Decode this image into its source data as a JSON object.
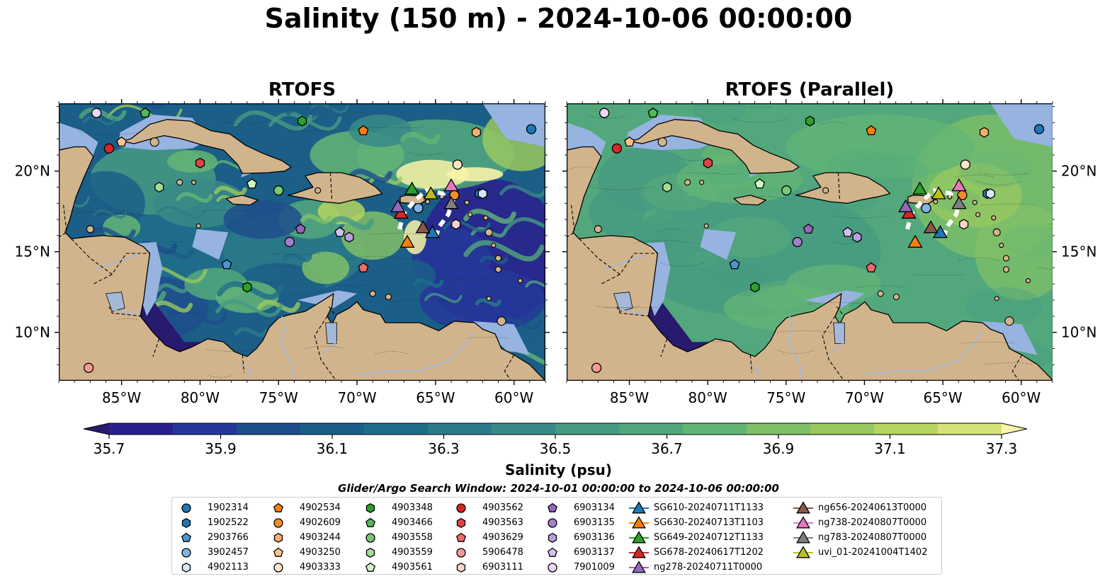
{
  "title": "Salinity (150 m) - 2024-10-06 00:00:00",
  "panels": [
    {
      "title": "RTOFS",
      "variant": "eddy"
    },
    {
      "title": "RTOFS (Parallel)",
      "variant": "smooth"
    }
  ],
  "map": {
    "lon_range": [
      -89.0,
      -58.0
    ],
    "lat_range": [
      7.0,
      24.2
    ],
    "lat_ticks": [
      "10°N",
      "15°N",
      "20°N"
    ],
    "lon_ticks": [
      "85°W",
      "80°W",
      "75°W",
      "70°W",
      "65°W",
      "60°W"
    ],
    "colors": {
      "land": "#d2b48c",
      "shelf": "#97b3e0",
      "coast": "#000000",
      "river": "#a4b8d8"
    }
  },
  "colorbar": {
    "label": "Salinity (psu)",
    "ticks": [
      "35.7",
      "35.9",
      "36.1",
      "36.3",
      "36.5",
      "36.7",
      "36.9",
      "37.1",
      "37.3"
    ],
    "vmin": 35.7,
    "vmax": 37.3,
    "colors": [
      "#281a6e",
      "#29208e",
      "#24389a",
      "#1e4d8c",
      "#1b5e87",
      "#1e6e8a",
      "#2c7a8a",
      "#388a87",
      "#459a82",
      "#52a87c",
      "#63b575",
      "#80c068",
      "#99c860",
      "#b5d560",
      "#d6e27a",
      "#f8f3a8"
    ]
  },
  "search_window": "Glider/Argo Search Window: 2024-10-01 00:00:00 to 2024-10-06 00:00:00",
  "legend": [
    {
      "label": "1902314",
      "marker": "circle",
      "color": "#1f77b4"
    },
    {
      "label": "1902522",
      "marker": "hexagon",
      "color": "#1f77b4"
    },
    {
      "label": "2903766",
      "marker": "pentagon",
      "color": "#4e95cc"
    },
    {
      "label": "3902457",
      "marker": "circle",
      "color": "#7fb4e6"
    },
    {
      "label": "4902113",
      "marker": "hexagon",
      "color": "#d4e8fb"
    },
    {
      "label": "4902534",
      "marker": "pentagon",
      "color": "#ff7f0e"
    },
    {
      "label": "4902609",
      "marker": "circle",
      "color": "#f28d2e"
    },
    {
      "label": "4903244",
      "marker": "hexagon",
      "color": "#fbae6b"
    },
    {
      "label": "4903250",
      "marker": "pentagon",
      "color": "#fcc38f"
    },
    {
      "label": "4903333",
      "marker": "circle",
      "color": "#ffe4c9"
    },
    {
      "label": "4903348",
      "marker": "hexagon",
      "color": "#2ca02c"
    },
    {
      "label": "4903466",
      "marker": "pentagon",
      "color": "#56b756"
    },
    {
      "label": "4903558",
      "marker": "circle",
      "color": "#77c877"
    },
    {
      "label": "4903559",
      "marker": "hexagon",
      "color": "#a2dc95"
    },
    {
      "label": "4903561",
      "marker": "pentagon",
      "color": "#d2f4c3"
    },
    {
      "label": "4903562",
      "marker": "circle",
      "color": "#d62728"
    },
    {
      "label": "4903563",
      "marker": "hexagon",
      "color": "#de4546"
    },
    {
      "label": "4903629",
      "marker": "pentagon",
      "color": "#ee6b68"
    },
    {
      "label": "5906478",
      "marker": "circle",
      "color": "#f59896"
    },
    {
      "label": "6903111",
      "marker": "hexagon",
      "color": "#fdd2cd"
    },
    {
      "label": "6903134",
      "marker": "pentagon",
      "color": "#9467bd"
    },
    {
      "label": "6903135",
      "marker": "circle",
      "color": "#a57fcb"
    },
    {
      "label": "6903136",
      "marker": "hexagon",
      "color": "#bd9be0"
    },
    {
      "label": "6903137",
      "marker": "pentagon",
      "color": "#d5bff0"
    },
    {
      "label": "7901009",
      "marker": "circle",
      "color": "#ecd6fa"
    },
    {
      "label": "SG610-20240711T1133",
      "marker": "triangle",
      "color": "#1f77b4"
    },
    {
      "label": "SG630-20240713T1103",
      "marker": "triangle",
      "color": "#ff7f0e"
    },
    {
      "label": "SG649-20240712T1133",
      "marker": "triangle",
      "color": "#2ca02c"
    },
    {
      "label": "SG678-20240617T1202",
      "marker": "triangle",
      "color": "#d62728"
    },
    {
      "label": "ng278-20240711T0000",
      "marker": "triangle",
      "color": "#9467bd"
    },
    {
      "label": "ng656-20240613T0000",
      "marker": "triangle",
      "color": "#8c564b"
    },
    {
      "label": "ng738-20240807T0000",
      "marker": "triangle",
      "color": "#e377c2"
    },
    {
      "label": "ng783-20240807T0000",
      "marker": "triangle",
      "color": "#7f7f7f"
    },
    {
      "label": "uvi_01-20241004T1402",
      "marker": "triangle",
      "color": "#bcbd22"
    }
  ],
  "floats": [
    {
      "id": "1902314",
      "lon": -58.9,
      "lat": 22.6
    },
    {
      "id": "1902522",
      "lon": -62.2,
      "lat": 18.6
    },
    {
      "id": "2903766",
      "lon": -78.3,
      "lat": 14.2
    },
    {
      "id": "3902457",
      "lon": -66.1,
      "lat": 17.7
    },
    {
      "id": "4902113",
      "lon": -62.0,
      "lat": 18.6
    },
    {
      "id": "4902534",
      "lon": -69.6,
      "lat": 22.5
    },
    {
      "id": "4902609",
      "lon": -63.8,
      "lat": 18.5
    },
    {
      "id": "4903244",
      "lon": -62.4,
      "lat": 22.4
    },
    {
      "id": "4903250",
      "lon": -85.0,
      "lat": 21.8
    },
    {
      "id": "4903333",
      "lon": -63.6,
      "lat": 20.4
    },
    {
      "id": "4903348",
      "lon": -77.0,
      "lat": 12.8
    },
    {
      "id": "4903466",
      "lon": -83.5,
      "lat": 23.6
    },
    {
      "id": "4903558",
      "lon": -75.0,
      "lat": 18.8
    },
    {
      "id": "4903559",
      "lon": -82.6,
      "lat": 19.0
    },
    {
      "id": "4903561",
      "lon": -76.7,
      "lat": 19.2
    },
    {
      "id": "4903562",
      "lon": -85.8,
      "lat": 21.4
    },
    {
      "id": "4903563",
      "lon": -80.0,
      "lat": 20.5
    },
    {
      "id": "4903629",
      "lon": -69.6,
      "lat": 14.0
    },
    {
      "id": "5906478",
      "lon": -87.1,
      "lat": 7.8
    },
    {
      "id": "6903111",
      "lon": -63.7,
      "lat": 16.7
    },
    {
      "id": "6903134",
      "lon": -73.6,
      "lat": 16.4
    },
    {
      "id": "6903135",
      "lon": -74.3,
      "lat": 15.6
    },
    {
      "id": "6903136",
      "lon": -70.5,
      "lat": 15.9
    },
    {
      "id": "6903137",
      "lon": -71.1,
      "lat": 16.2
    },
    {
      "id": "7901009",
      "lon": -86.6,
      "lat": 23.6
    },
    {
      "id": "4903348b",
      "lon": -73.5,
      "lat": 23.1
    }
  ],
  "gliders": [
    {
      "id": "SG610",
      "lon": -65.2,
      "lat": 16.2
    },
    {
      "id": "SG630",
      "lon": -66.8,
      "lat": 15.6
    },
    {
      "id": "SG649",
      "lon": -66.5,
      "lat": 18.9
    },
    {
      "id": "SG678",
      "lon": -67.2,
      "lat": 17.4
    },
    {
      "id": "ng278",
      "lon": -67.4,
      "lat": 17.8
    },
    {
      "id": "ng656",
      "lon": -65.8,
      "lat": 16.5
    },
    {
      "id": "ng738",
      "lon": -64.0,
      "lat": 19.1
    },
    {
      "id": "ng783",
      "lon": -64.0,
      "lat": 18.0
    },
    {
      "id": "uvi_01",
      "lon": -65.3,
      "lat": 18.6
    }
  ]
}
